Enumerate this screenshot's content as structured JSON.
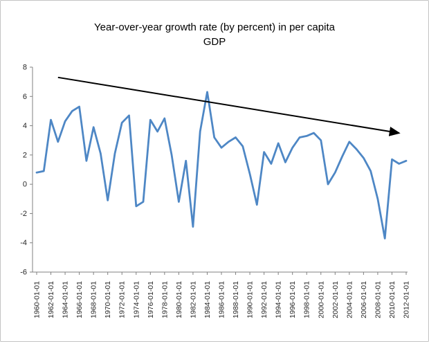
{
  "figure": {
    "title_line1": "Year-over-year growth rate (by  percent) in per capita",
    "title_line2": "GDP"
  },
  "chart_data": {
    "type": "line",
    "title": "Year-over-year growth rate (by  percent) in per capita GDP",
    "xlabel": "",
    "ylabel": "",
    "ylim": [
      -6,
      8
    ],
    "yticks": [
      -6,
      -4,
      -2,
      0,
      2,
      4,
      6,
      8
    ],
    "grid": false,
    "legend": false,
    "xtick_every": 2,
    "line_color": "#4E87C5",
    "line_width": 2.8,
    "axis_color": "#808080",
    "tick_label_color": "#262626",
    "x": [
      "1960-01-01",
      "1961-01-01",
      "1962-01-01",
      "1963-01-01",
      "1964-01-01",
      "1965-01-01",
      "1966-01-01",
      "1967-01-01",
      "1968-01-01",
      "1969-01-01",
      "1970-01-01",
      "1971-01-01",
      "1972-01-01",
      "1973-01-01",
      "1974-01-01",
      "1975-01-01",
      "1976-01-01",
      "1977-01-01",
      "1978-01-01",
      "1979-01-01",
      "1980-01-01",
      "1981-01-01",
      "1982-01-01",
      "1983-01-01",
      "1984-01-01",
      "1985-01-01",
      "1986-01-01",
      "1987-01-01",
      "1988-01-01",
      "1989-01-01",
      "1990-01-01",
      "1991-01-01",
      "1992-01-01",
      "1993-01-01",
      "1994-01-01",
      "1995-01-01",
      "1996-01-01",
      "1997-01-01",
      "1998-01-01",
      "1999-01-01",
      "2000-01-01",
      "2001-01-01",
      "2002-01-01",
      "2003-01-01",
      "2004-01-01",
      "2005-01-01",
      "2006-01-01",
      "2007-01-01",
      "2008-01-01",
      "2009-01-01",
      "2010-01-01",
      "2011-01-01",
      "2012-01-01"
    ],
    "values": [
      0.8,
      0.9,
      4.4,
      2.9,
      4.3,
      5.0,
      5.3,
      1.6,
      3.9,
      2.1,
      -1.1,
      2.1,
      4.2,
      4.7,
      -1.5,
      -1.2,
      4.4,
      3.6,
      4.5,
      2.0,
      -1.2,
      1.6,
      -2.9,
      3.6,
      6.3,
      3.2,
      2.5,
      2.9,
      3.2,
      2.6,
      0.7,
      -1.4,
      2.2,
      1.4,
      2.8,
      1.5,
      2.5,
      3.2,
      3.3,
      3.5,
      3.0,
      0.0,
      0.8,
      1.9,
      2.9,
      2.4,
      1.8,
      0.9,
      -1.0,
      -3.7,
      1.7,
      1.4,
      1.6
    ],
    "trend_arrow": {
      "start_x": "1963-01-01",
      "start_y": 7.3,
      "end_x": "2011-01-01",
      "end_y": 3.5,
      "color": "#000000"
    }
  }
}
